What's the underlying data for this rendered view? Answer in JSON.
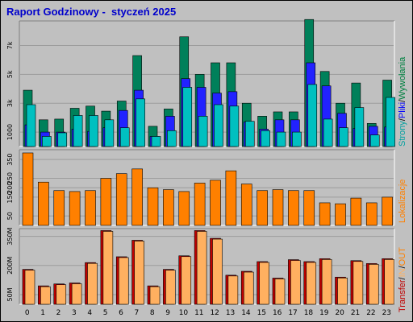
{
  "title": "Raport Godzinowy -  styczeń 2025",
  "colors": {
    "background": "#c0c0c0",
    "panel": "#c0c0c0",
    "strony": "#00c0c0",
    "pliki": "#2222ff",
    "wywolania": "#00805a",
    "lokalizacje": "#ff8000",
    "transfer_out": "#c00000",
    "transfer_in": "#ffb060",
    "labels": {
      "strony": "#00a0a0",
      "pliki": "#0000ff",
      "wywolania": "#008040",
      "lokalizacje": "#ff8000",
      "transfer": "#c00000",
      "in": "#ffb060",
      "out": "#ff8000",
      "sep": "#000000"
    }
  },
  "side_labels": {
    "top": [
      "Strony",
      "/",
      "Pliki",
      "/",
      "Wywołania"
    ],
    "middle": "Lokalizacje",
    "bottom": [
      "Transfer",
      "/",
      "IN",
      "/",
      "OUT"
    ]
  },
  "chart_data": [
    {
      "type": "bar",
      "name": "top",
      "categories": [
        "0",
        "1",
        "2",
        "3",
        "4",
        "5",
        "6",
        "7",
        "8",
        "9",
        "10",
        "11",
        "12",
        "13",
        "14",
        "15",
        "16",
        "17",
        "18",
        "19",
        "20",
        "21",
        "22",
        "23"
      ],
      "ylim": [
        0,
        8700
      ],
      "ytick_labels": [
        "1000",
        "3k",
        "5k",
        "7k"
      ],
      "ytick_values": [
        1000,
        3000,
        5000,
        7000
      ],
      "series": [
        {
          "name": "Wywołania",
          "values": [
            3900,
            1850,
            1900,
            2650,
            2800,
            2450,
            3150,
            6300,
            1400,
            2600,
            7600,
            5000,
            5800,
            5800,
            3000,
            2100,
            2400,
            2400,
            8800,
            5200,
            3000,
            4400,
            1600,
            4600
          ]
        },
        {
          "name": "Pliki",
          "values": [
            1500,
            1000,
            1000,
            1200,
            1050,
            1300,
            2500,
            3900,
            700,
            2100,
            4700,
            4100,
            3700,
            3800,
            1700,
            1200,
            1850,
            1850,
            5800,
            4200,
            2300,
            1250,
            1400,
            1350
          ]
        },
        {
          "name": "Strony",
          "values": [
            2900,
            700,
            950,
            2150,
            2150,
            1850,
            1300,
            3300,
            700,
            1100,
            4100,
            2100,
            2900,
            2800,
            1750,
            1100,
            1000,
            1000,
            4300,
            1900,
            1300,
            2700,
            800,
            3400
          ]
        }
      ]
    },
    {
      "type": "bar",
      "name": "middle",
      "categories": [
        "0",
        "1",
        "2",
        "3",
        "4",
        "5",
        "6",
        "7",
        "8",
        "9",
        "10",
        "11",
        "12",
        "13",
        "14",
        "15",
        "16",
        "17",
        "18",
        "19",
        "20",
        "21",
        "22",
        "23"
      ],
      "ylim": [
        0,
        402
      ],
      "ytick_labels": [
        "50",
        "150",
        "200",
        "250",
        "350"
      ],
      "ytick_values": [
        50,
        150,
        200,
        250,
        350
      ],
      "series": [
        {
          "name": "Lokalizacje",
          "values": [
            385,
            230,
            185,
            180,
            185,
            250,
            275,
            300,
            200,
            190,
            180,
            225,
            240,
            290,
            220,
            185,
            190,
            185,
            185,
            120,
            115,
            145,
            120,
            150
          ]
        }
      ]
    },
    {
      "type": "bar",
      "name": "bottom",
      "categories": [
        "0",
        "1",
        "2",
        "3",
        "4",
        "5",
        "6",
        "7",
        "8",
        "9",
        "10",
        "11",
        "12",
        "13",
        "14",
        "15",
        "16",
        "17",
        "18",
        "19",
        "20",
        "21",
        "22",
        "23"
      ],
      "ylim": [
        0,
        390
      ],
      "ytick_labels": [
        "50M",
        "200M",
        "350M"
      ],
      "ytick_values": [
        50,
        200,
        350
      ],
      "series": [
        {
          "name": "OUT",
          "values": [
            180,
            95,
            105,
            110,
            215,
            380,
            245,
            330,
            95,
            180,
            250,
            380,
            340,
            150,
            170,
            220,
            135,
            230,
            220,
            235,
            140,
            225,
            210,
            235
          ]
        },
        {
          "name": "IN",
          "values": [
            180,
            95,
            105,
            110,
            215,
            380,
            245,
            330,
            95,
            180,
            250,
            380,
            340,
            150,
            170,
            220,
            135,
            230,
            220,
            235,
            140,
            225,
            210,
            235
          ]
        }
      ]
    }
  ]
}
